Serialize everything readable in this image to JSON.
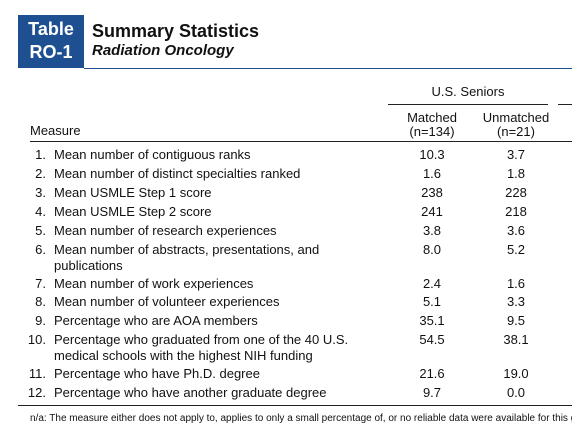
{
  "header": {
    "label": [
      "Table",
      "RO-1"
    ],
    "title": "Summary Statistics",
    "subtitle": "Radiation Oncology"
  },
  "table": {
    "group": "U.S. Seniors",
    "measure_header": "Measure",
    "columns": [
      {
        "name": "Matched",
        "n": "(n=134)"
      },
      {
        "name": "Unmatched",
        "n": "(n=21)"
      }
    ],
    "rows": [
      [
        "1.",
        "Mean number of contiguous ranks",
        "10.3",
        "3.7"
      ],
      [
        "2.",
        "Mean number of distinct specialties ranked",
        "1.6",
        "1.8"
      ],
      [
        "3.",
        "Mean USMLE Step 1 score",
        "238",
        "228"
      ],
      [
        "4.",
        "Mean USMLE Step 2 score",
        "241",
        "218"
      ],
      [
        "5.",
        "Mean number of research experiences",
        "3.8",
        "3.6"
      ],
      [
        "6.",
        "Mean number of abstracts, presentations, and publications",
        "8.0",
        "5.2"
      ],
      [
        "7.",
        "Mean number of work experiences",
        "2.4",
        "1.6"
      ],
      [
        "8.",
        "Mean number of volunteer experiences",
        "5.1",
        "3.3"
      ],
      [
        "9.",
        "Percentage who are AOA members",
        "35.1",
        "9.5"
      ],
      [
        "10.",
        "Percentage who graduated from one of the 40 U.S. medical schools with the highest NIH funding",
        "54.5",
        "38.1"
      ],
      [
        "11.",
        "Percentage who have Ph.D. degree",
        "21.6",
        "19.0"
      ],
      [
        "12.",
        "Percentage who have another graduate degree",
        "9.7",
        "0.0"
      ]
    ]
  },
  "footnote": "n/a: The measure either does not apply to, applies to only a small percentage of, or no reliable data were available for this group."
}
